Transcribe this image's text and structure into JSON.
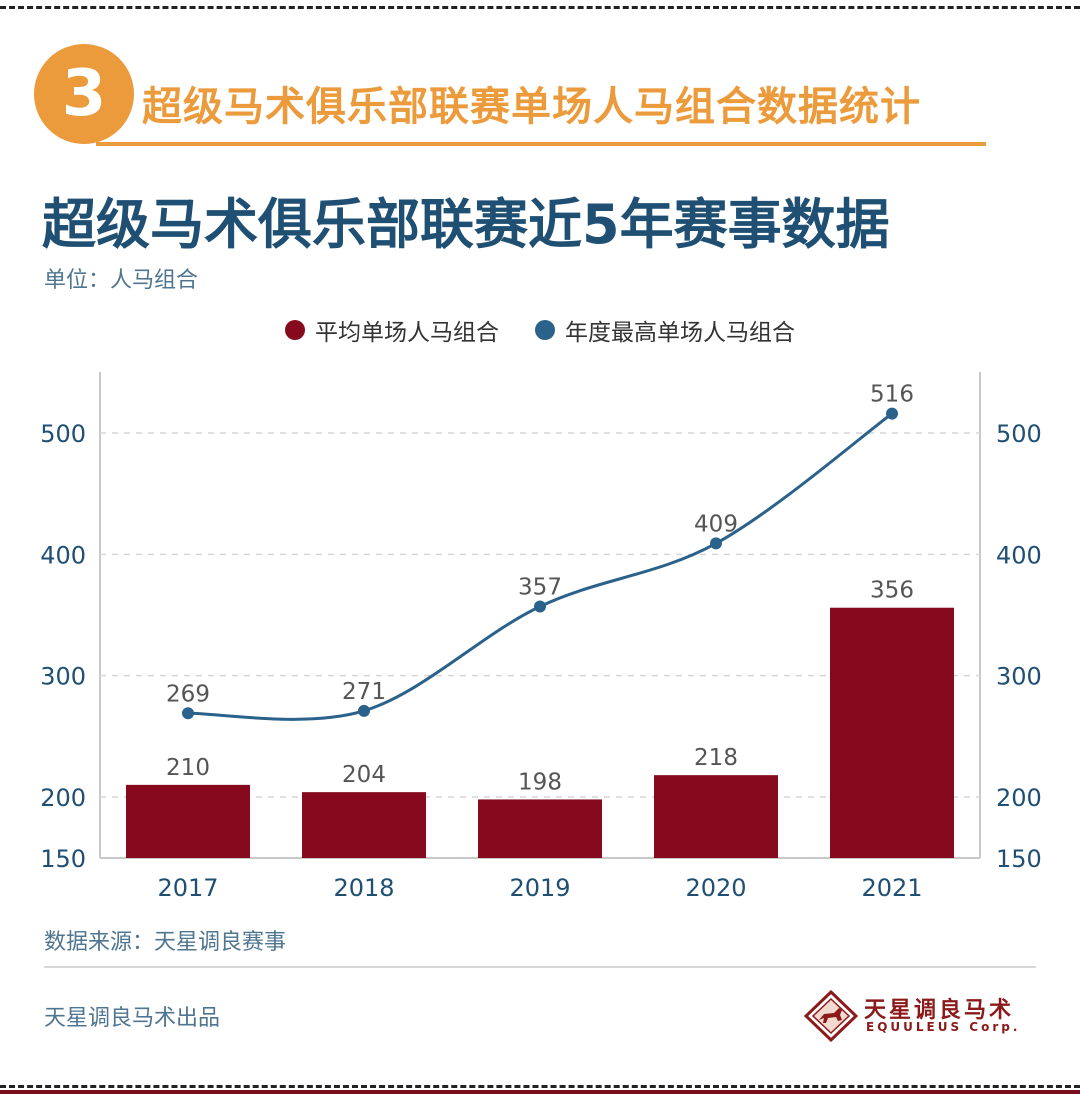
{
  "section": {
    "number": "3",
    "title": "超级马术俱乐部联赛单场人马组合数据统计"
  },
  "colors": {
    "accent_orange": "#eb9b3b",
    "title_blue": "#1f4f73",
    "bar_red": "#86091d",
    "line_blue": "#2a628c"
  },
  "chart_data": {
    "type": "bar",
    "title": "超级马术俱乐部联赛近5年赛事数据",
    "unit": "单位：人马组合",
    "categories": [
      "2017",
      "2018",
      "2019",
      "2020",
      "2021"
    ],
    "series": [
      {
        "name": "平均单场人马组合",
        "kind": "bar",
        "color": "#86091d",
        "values": [
          210,
          204,
          198,
          218,
          356
        ]
      },
      {
        "name": "年度最高单场人马组合",
        "kind": "line",
        "color": "#2a628c",
        "values": [
          269,
          271,
          357,
          409,
          516
        ]
      }
    ],
    "y_ticks": [
      150,
      200,
      300,
      400,
      500
    ],
    "ylim": [
      150,
      550
    ],
    "grid": true,
    "legend": "top-center",
    "dual_axis_labels": true
  },
  "source": "数据来源：天星调良赛事",
  "producer": "天星调良马术出品",
  "logo": {
    "name_cn": "天星调良马术",
    "name_en": "EQUULEUS Corp.",
    "icon": "horse-logo-icon"
  }
}
